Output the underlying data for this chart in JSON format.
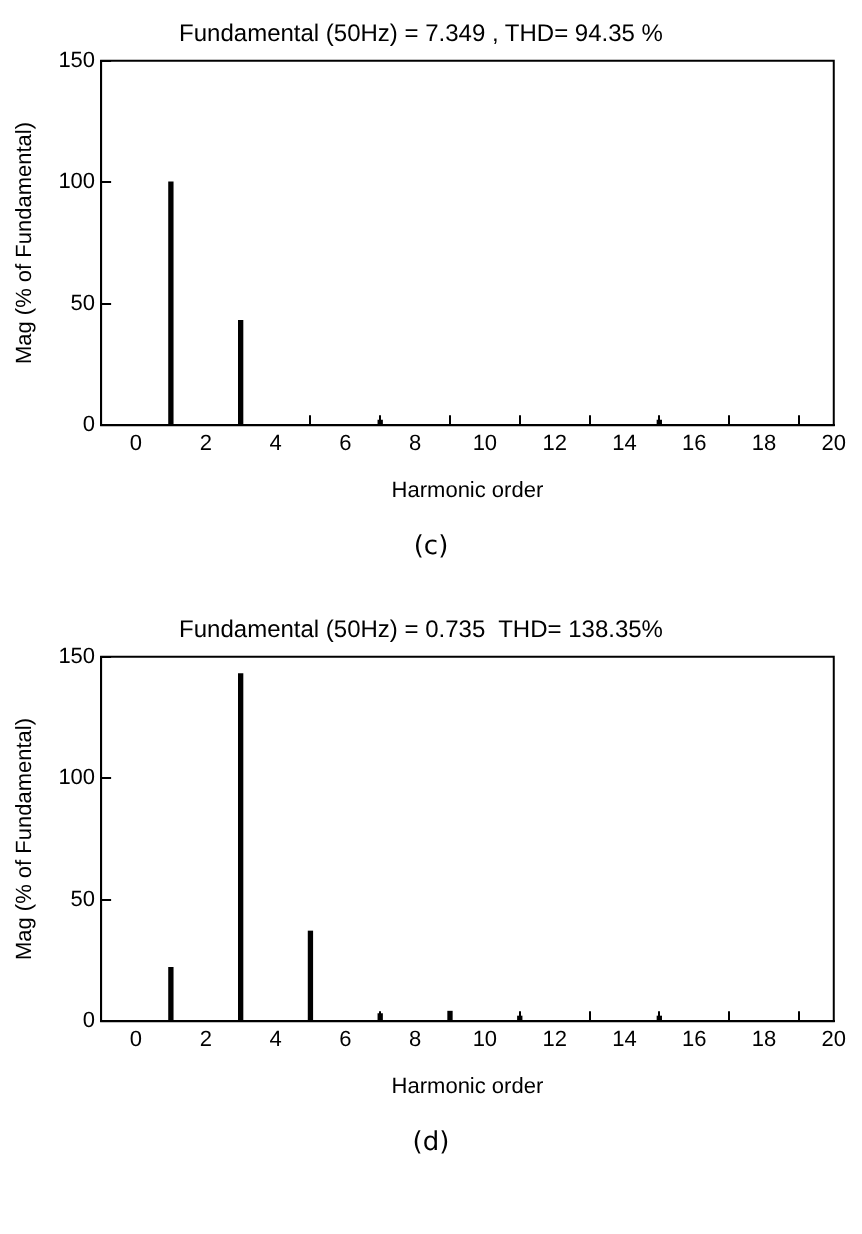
{
  "chart_data": [
    {
      "type": "bar",
      "title": "Fundamental (50Hz) = 7.349 , THD= 94.35 %",
      "xlabel": "Harmonic order",
      "ylabel": "Mag (% of Fundamental)",
      "x": [
        1,
        3,
        7,
        15
      ],
      "values": [
        100,
        43,
        2,
        2
      ],
      "color": "#000000",
      "xlim": [
        -1,
        20
      ],
      "xticks": [
        0,
        2,
        4,
        6,
        8,
        10,
        12,
        14,
        16,
        18,
        20
      ],
      "ylim": [
        0,
        150
      ],
      "yticks": [
        0,
        50,
        100,
        150
      ],
      "annotations": [
        "(c)"
      ]
    },
    {
      "type": "bar",
      "title": "Fundamental (50Hz) = 0.735  THD= 138.35%",
      "xlabel": "Harmonic order",
      "ylabel": "Mag (% of Fundamental)",
      "x": [
        1,
        3,
        5,
        7,
        9,
        11,
        15
      ],
      "values": [
        22,
        143,
        37,
        3,
        4,
        2,
        2
      ],
      "color": "#000000",
      "xlim": [
        -1,
        20
      ],
      "xticks": [
        0,
        2,
        4,
        6,
        8,
        10,
        12,
        14,
        16,
        18,
        20
      ],
      "ylim": [
        0,
        150
      ],
      "yticks": [
        0,
        50,
        100,
        150
      ],
      "annotations": [
        "(d)"
      ]
    }
  ]
}
